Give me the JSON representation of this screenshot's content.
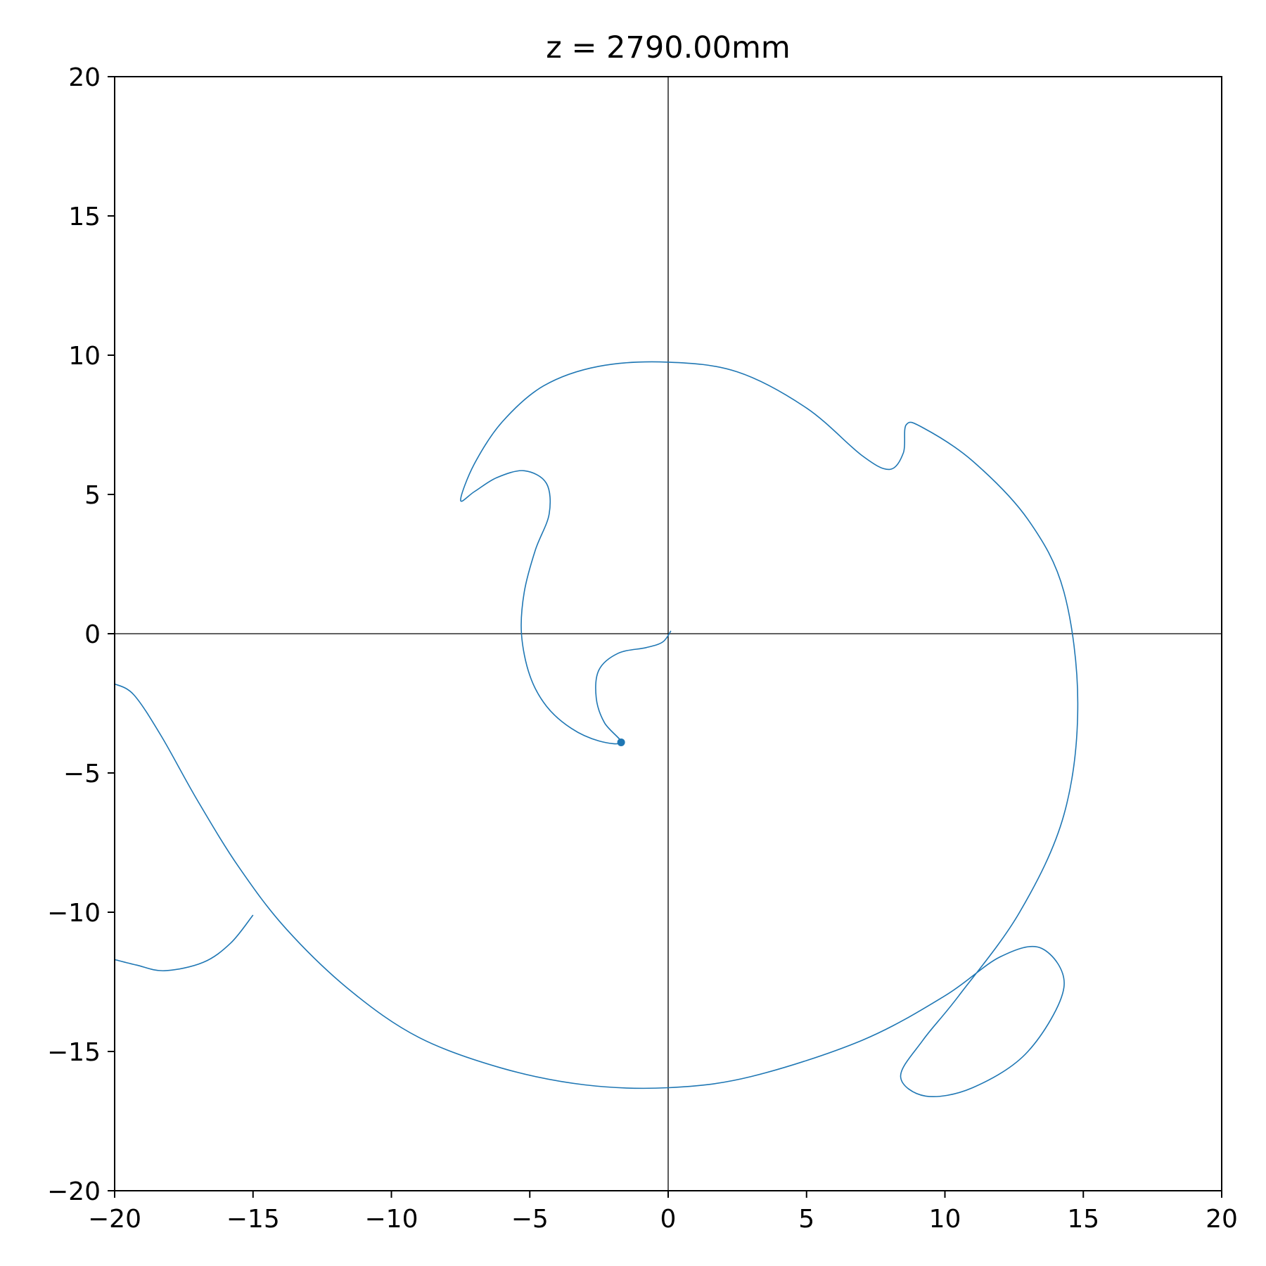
{
  "chart_data": {
    "type": "line",
    "title": "z = 2790.00mm",
    "xlabel": "",
    "ylabel": "",
    "xlim": [
      -20,
      20
    ],
    "ylim": [
      -20,
      20
    ],
    "grid": false,
    "legend": "none",
    "x_ticks": [
      -20,
      -15,
      -10,
      -5,
      0,
      5,
      10,
      15,
      20
    ],
    "y_ticks": [
      -20,
      -15,
      -10,
      -5,
      0,
      5,
      10,
      15,
      20
    ],
    "x_tick_labels": [
      "−20",
      "−15",
      "−10",
      "−5",
      "0",
      "5",
      "10",
      "15",
      "20"
    ],
    "y_tick_labels": [
      "−20",
      "−15",
      "−10",
      "−5",
      "0",
      "5",
      "10",
      "15",
      "20"
    ],
    "reference_lines": {
      "x": 0,
      "y": 0
    },
    "series_color": "#1f77b4",
    "trajectory": [
      [
        0.1,
        0.1
      ],
      [
        -0.2,
        -0.3
      ],
      [
        -0.8,
        -0.5
      ],
      [
        -1.8,
        -0.7
      ],
      [
        -2.5,
        -1.3
      ],
      [
        -2.6,
        -2.3
      ],
      [
        -2.3,
        -3.2
      ],
      [
        -1.7,
        -3.9
      ],
      [
        -2.5,
        -3.85
      ],
      [
        -3.5,
        -3.4
      ],
      [
        -4.4,
        -2.6
      ],
      [
        -5.0,
        -1.5
      ],
      [
        -5.3,
        0.0
      ],
      [
        -5.2,
        1.5
      ],
      [
        -4.8,
        3.0
      ],
      [
        -4.3,
        4.3
      ],
      [
        -4.4,
        5.4
      ],
      [
        -5.2,
        5.85
      ],
      [
        -6.2,
        5.6
      ],
      [
        -7.0,
        5.1
      ],
      [
        -7.5,
        4.8
      ],
      [
        -7.0,
        6.1
      ],
      [
        -6.0,
        7.6
      ],
      [
        -4.5,
        8.9
      ],
      [
        -2.5,
        9.6
      ],
      [
        0.0,
        9.75
      ],
      [
        2.5,
        9.4
      ],
      [
        5.0,
        8.1
      ],
      [
        7.0,
        6.4
      ],
      [
        8.0,
        5.9
      ],
      [
        8.5,
        6.5
      ],
      [
        8.6,
        7.5
      ],
      [
        9.2,
        7.4
      ],
      [
        11.0,
        6.2
      ],
      [
        13.0,
        4.1
      ],
      [
        14.3,
        1.5
      ],
      [
        14.8,
        -2.5
      ],
      [
        14.3,
        -6.5
      ],
      [
        12.7,
        -10.0
      ],
      [
        10.5,
        -13.0
      ],
      [
        9.2,
        -14.6
      ],
      [
        8.4,
        -15.9
      ],
      [
        9.3,
        -16.6
      ],
      [
        11.0,
        -16.3
      ],
      [
        13.0,
        -15.0
      ],
      [
        14.3,
        -12.7
      ],
      [
        13.5,
        -11.3
      ],
      [
        12.0,
        -11.6
      ],
      [
        10.0,
        -13.0
      ],
      [
        7.0,
        -14.6
      ],
      [
        3.0,
        -15.9
      ],
      [
        0.0,
        -16.3
      ],
      [
        -3.0,
        -16.2
      ],
      [
        -6.0,
        -15.6
      ],
      [
        -9.0,
        -14.5
      ],
      [
        -11.5,
        -12.8
      ],
      [
        -13.8,
        -10.6
      ],
      [
        -15.5,
        -8.4
      ],
      [
        -17.0,
        -6.0
      ],
      [
        -18.3,
        -3.7
      ],
      [
        -19.3,
        -2.2
      ],
      [
        -20.0,
        -1.8
      ]
    ],
    "fragment": [
      [
        -15.0,
        -10.1
      ],
      [
        -15.8,
        -11.1
      ],
      [
        -16.8,
        -11.8
      ],
      [
        -18.2,
        -12.1
      ],
      [
        -19.2,
        -11.9
      ],
      [
        -20.0,
        -11.7
      ]
    ],
    "marker": {
      "x": -1.7,
      "y": -3.9
    }
  }
}
